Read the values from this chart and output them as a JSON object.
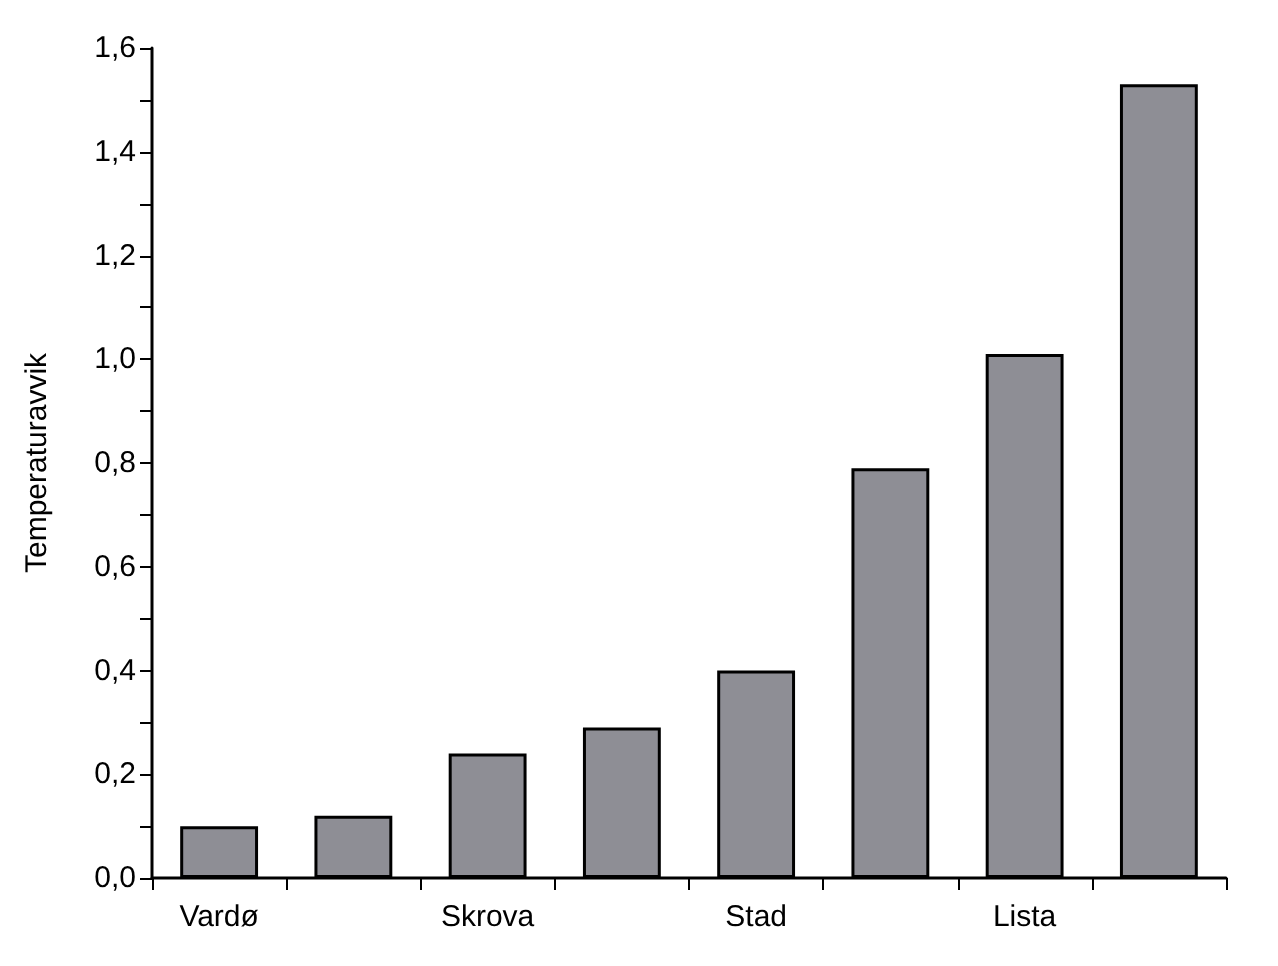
{
  "chart_data": {
    "type": "bar",
    "ylabel": "Temperaturavvik",
    "categories": [
      "Vardø",
      null,
      "Skrova",
      null,
      "Stad",
      null,
      "Lista",
      null
    ],
    "values": [
      0.1,
      0.12,
      0.24,
      0.29,
      0.4,
      0.79,
      1.01,
      1.53
    ],
    "color": "#8e8e95",
    "ylim": [
      0,
      1.6
    ],
    "yticks": [
      {
        "value": 0,
        "label": "0,0"
      },
      {
        "value": 0.1,
        "label": null
      },
      {
        "value": 0.2,
        "label": "0,2"
      },
      {
        "value": 0.3,
        "label": null
      },
      {
        "value": 0.4,
        "label": "0,4"
      },
      {
        "value": 0.5,
        "label": null
      },
      {
        "value": 0.6,
        "label": "0,6"
      },
      {
        "value": 0.7,
        "label": null
      },
      {
        "value": 0.8,
        "label": "0,8"
      },
      {
        "value": 0.9,
        "label": null
      },
      {
        "value": 1.0,
        "label": "1,0"
      },
      {
        "value": 1.1,
        "label": null
      },
      {
        "value": 1.2,
        "label": "1,2"
      },
      {
        "value": 1.3,
        "label": null
      },
      {
        "value": 1.4,
        "label": "1,4"
      },
      {
        "value": 1.5,
        "label": null
      },
      {
        "value": 1.6,
        "label": "1,6"
      }
    ],
    "grid": false
  }
}
